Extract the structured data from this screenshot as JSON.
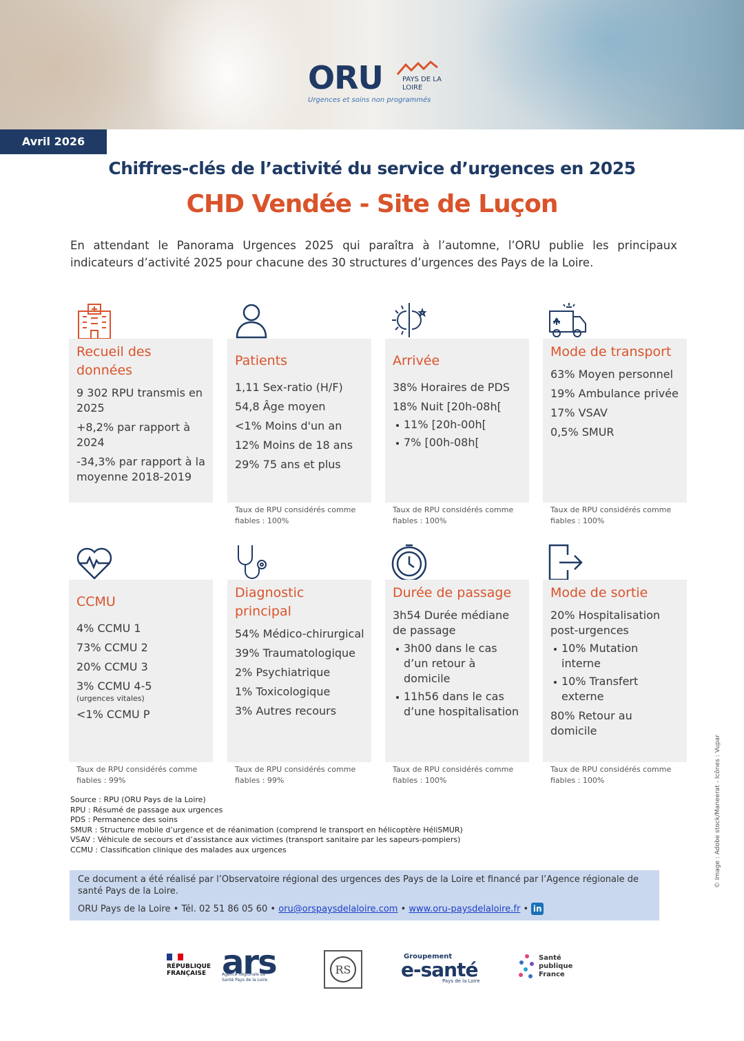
{
  "header": {
    "logo": "ORU",
    "region": "PAYS DE LA LOIRE",
    "tagline": "Urgences et soins non programmés",
    "date": "Avril 2026"
  },
  "title": "Chiffres-clés de l’activité du service d’urgences en 2025",
  "subtitle": "CHD Vendée - Site de Luçon",
  "intro": "En attendant le Panorama Urgences 2025 qui paraîtra à l’automne, l’ORU publie les principaux indicateurs d’activité 2025 pour chacune des 30 structures d’urgences des Pays de la Loire.",
  "cards": [
    {
      "title": "Recueil des données",
      "items": [
        {
          "text": "9 302 RPU transmis en 2025"
        },
        {
          "text": "+8,2% par rapport à 2024"
        },
        {
          "text": "-34,3% par rapport à la moyenne 2018-2019"
        }
      ]
    },
    {
      "title": "Patients",
      "items": [
        {
          "text": "1,11 Sex-ratio (H/F)"
        },
        {
          "text": "54,8 Âge moyen"
        },
        {
          "text": "<1% Moins d'un an"
        },
        {
          "text": "12% Moins de 18 ans"
        },
        {
          "text": "29% 75 ans et plus"
        }
      ],
      "footnote": "Taux de RPU considérés comme fiables : 100%"
    },
    {
      "title": "Arrivée",
      "items": [
        {
          "text": "38% Horaires de PDS"
        },
        {
          "text": "18% Nuit [20h-08h[",
          "sub": [
            "11% [20h-00h[",
            "7% [00h-08h["
          ]
        }
      ],
      "footnote": "Taux de RPU considérés comme fiables : 100%"
    },
    {
      "title": "Mode de transport",
      "items": [
        {
          "text": "63% Moyen personnel"
        },
        {
          "text": "19% Ambulance privée"
        },
        {
          "text": "17% VSAV"
        },
        {
          "text": "0,5% SMUR"
        }
      ],
      "footnote": "Taux de RPU considérés comme fiables : 100%"
    },
    {
      "title": "CCMU",
      "items": [
        {
          "text": "4% CCMU 1"
        },
        {
          "text": "73% CCMU 2"
        },
        {
          "text": "20% CCMU 3"
        },
        {
          "text": "3% CCMU 4-5",
          "note": "(urgences vitales)"
        },
        {
          "text": "<1% CCMU P"
        }
      ],
      "footnote": "Taux de RPU considérés comme fiables : 99%"
    },
    {
      "title": "Diagnostic principal",
      "items": [
        {
          "text": "54% Médico-chirurgical"
        },
        {
          "text": "39% Traumatologique"
        },
        {
          "text": "2% Psychiatrique"
        },
        {
          "text": "1% Toxicologique"
        },
        {
          "text": "3% Autres recours"
        }
      ],
      "footnote": "Taux de RPU considérés comme fiables : 99%"
    },
    {
      "title": "Durée de passage",
      "items": [
        {
          "text": "3h54 Durée médiane de passage",
          "sub": [
            "3h00 dans le cas d’un retour à domicile",
            "11h56 dans le cas d’une hospitalisation"
          ]
        }
      ],
      "footnote": "Taux de RPU considérés comme fiables : 100%"
    },
    {
      "title": "Mode de sortie",
      "items": [
        {
          "text": "20% Hospitalisation post-urgences",
          "sub": [
            "10% Mutation interne",
            "10% Transfert externe"
          ]
        },
        {
          "text": "80% Retour au domicile"
        }
      ],
      "footnote": "Taux de RPU considérés comme fiables : 100%"
    }
  ],
  "sources": [
    "Source : RPU (ORU Pays de la Loire)",
    "RPU : Résumé de passage aux urgences",
    "PDS : Permanence des soins",
    "SMUR : Structure mobile d’urgence et de réanimation (comprend le transport en hélicoptère HéliSMUR)",
    "VSAV : Véhicule de secours et d’assistance aux victimes (transport sanitaire par les sapeurs-pompiers)",
    "CCMU : Classification clinique des malades aux urgences"
  ],
  "footer": {
    "text": "Ce document a été réalisé par l’Observatoire régional des urgences des Pays de la Loire et financé par l’Agence régionale de santé Pays de la Loire.",
    "contact": "ORU Pays de la Loire • Tél. 02 51 86 05 60",
    "separator": "•",
    "email": "oru@orspaysdelaloire.com",
    "website": "www.oru-paysdelaloire.fr",
    "linkedin": "in"
  },
  "logos": {
    "republique": "RÉPUBLIQUE FRANÇAISE",
    "ars": "ars",
    "ars_sub": "Agence Régionale de Santé Pays de la Loire",
    "esante_top": "Groupement",
    "esante": "e-santé",
    "esante_sub": "Pays de la Loire",
    "spf": "Santé publique France"
  },
  "credit": "© Image : Adobe stock/Maneerat - Icônes : Vupar"
}
